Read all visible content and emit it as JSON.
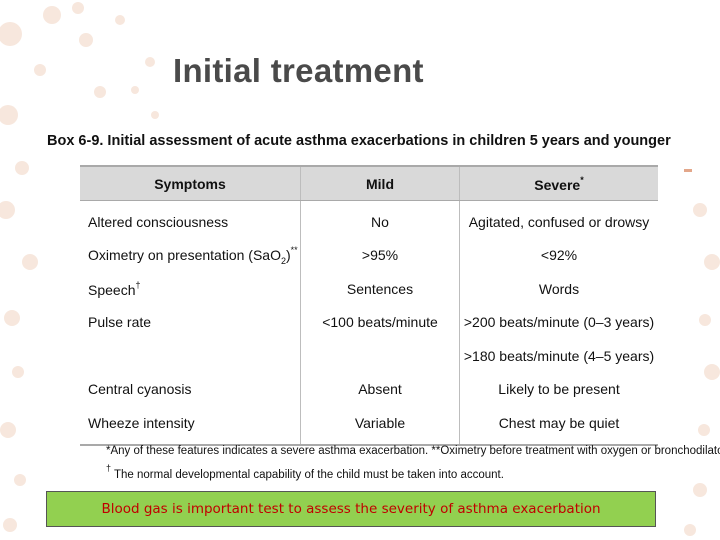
{
  "slide": {
    "title": "Initial treatment"
  },
  "box": {
    "title": "Box 6-9. Initial assessment of acute asthma exacerbations in children 5 years and younger",
    "headers": {
      "symptoms": "Symptoms",
      "mild": "Mild",
      "severe": "Severe",
      "severe_mark": "*"
    },
    "rows": [
      {
        "symptom": "Altered consciousness",
        "mild": "No",
        "severe": "Agitated, confused or drowsy"
      },
      {
        "symptom": "Oximetry on presentation (SaO",
        "symptom_sub": "2",
        "symptom_end": ")",
        "symptom_mark": "**",
        "mild": ">95%",
        "severe": "<92%"
      },
      {
        "symptom": "Speech",
        "symptom_mark": "†",
        "mild": "Sentences",
        "severe": "Words"
      },
      {
        "symptom": "Pulse rate",
        "mild": "<100 beats/minute",
        "severe": ">200 beats/minute (0–3 years)"
      },
      {
        "symptom": "",
        "mild": "",
        "severe": ">180 beats/minute (4–5 years)"
      },
      {
        "symptom": "Central cyanosis",
        "mild": "Absent",
        "severe": "Likely to be present"
      },
      {
        "symptom": "Wheeze intensity",
        "mild": "Variable",
        "severe": "Chest may be quiet"
      }
    ],
    "footnote1": "*Any of these features indicates a severe asthma exacerbation. **Oximetry before treatment with oxygen or bronchodilator.",
    "footnote2_mark": "†",
    "footnote2": " The normal developmental capability of the child must be taken into account."
  },
  "banner": {
    "text": "Blood gas is important test to assess the severity of asthma exacerbation"
  },
  "colors": {
    "title": "#4a4a4a",
    "banner_bg": "#92d050",
    "banner_text": "#c00000",
    "header_bg": "#d9d9d9",
    "dots": "#f6e6dc"
  }
}
